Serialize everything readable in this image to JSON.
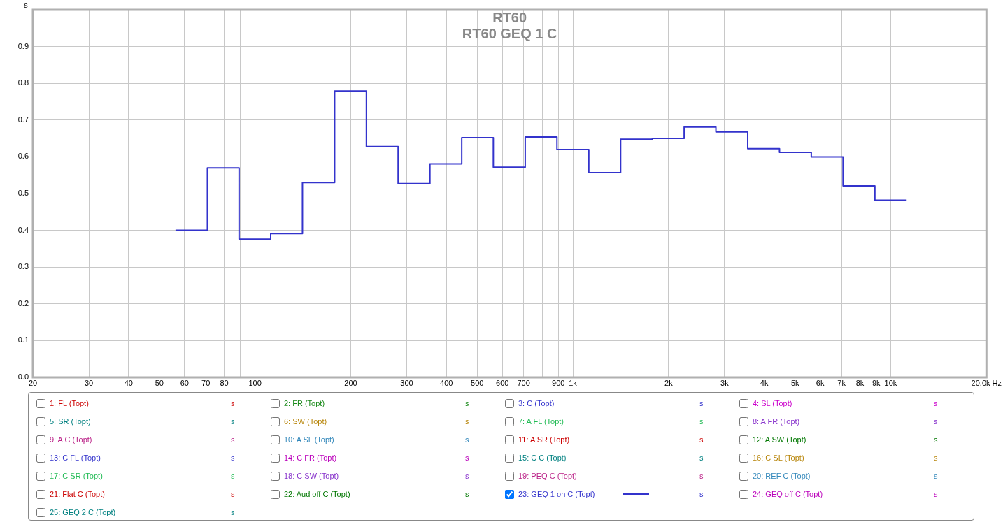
{
  "chart_data": {
    "type": "step",
    "title": "RT60",
    "subtitle": "RT60 GEQ 1 C",
    "ylabel": "s",
    "log": "x",
    "grid": true,
    "legend": "bottom",
    "x": [
      56.2,
      70.8,
      89.1,
      112,
      141,
      178,
      224,
      282,
      355,
      447,
      562,
      708,
      891,
      1122,
      1413,
      1778,
      2239,
      2818,
      3548,
      4467,
      5623,
      7079,
      8913,
      11220
    ],
    "xlim": [
      20,
      20000
    ],
    "xticks": [
      20,
      30,
      40,
      50,
      60,
      70,
      80,
      {
        "value": 90,
        "label": null
      },
      100,
      200,
      300,
      400,
      500,
      600,
      700,
      {
        "value": 800,
        "label": null
      },
      900,
      {
        "value": 1000,
        "label": "1k"
      },
      {
        "value": 2000,
        "label": "2k"
      },
      {
        "value": 3000,
        "label": "3k"
      },
      {
        "value": 4000,
        "label": "4k"
      },
      {
        "value": 5000,
        "label": "5k"
      },
      {
        "value": 6000,
        "label": "6k"
      },
      {
        "value": 7000,
        "label": "7k"
      },
      {
        "value": 8000,
        "label": "8k"
      },
      {
        "value": 9000,
        "label": "9k"
      },
      {
        "value": 10000,
        "label": "10k"
      },
      {
        "value": 20000,
        "label": "20.0k Hz"
      }
    ],
    "ylim": [
      0,
      1
    ],
    "yticks": [
      {
        "value": 0,
        "label": "0.0"
      },
      0.1,
      0.2,
      0.3,
      0.4,
      0.5,
      0.6,
      0.7,
      0.8,
      0.9
    ],
    "series": [
      {
        "name": "1: FL (Topt)",
        "color": "#cc0000",
        "values": [
          null,
          null,
          null,
          null,
          null,
          null,
          null,
          null,
          null,
          null,
          null,
          null,
          null,
          null,
          null,
          null,
          null,
          null,
          null,
          null,
          null,
          null,
          null,
          null
        ]
      },
      {
        "name": "2: FR (Topt)",
        "color": "#1a8a1a",
        "values": [
          null,
          null,
          null,
          null,
          null,
          null,
          null,
          null,
          null,
          null,
          null,
          null,
          null,
          null,
          null,
          null,
          null,
          null,
          null,
          null,
          null,
          null,
          null,
          null
        ]
      },
      {
        "name": "3: C (Topt)",
        "color": "#3333cc",
        "values": [
          null,
          null,
          null,
          null,
          null,
          null,
          null,
          null,
          null,
          null,
          null,
          null,
          null,
          null,
          null,
          null,
          null,
          null,
          null,
          null,
          null,
          null,
          null,
          null
        ]
      },
      {
        "name": "4: SL (Topt)",
        "color": "#cc00cc",
        "values": [
          null,
          null,
          null,
          null,
          null,
          null,
          null,
          null,
          null,
          null,
          null,
          null,
          null,
          null,
          null,
          null,
          null,
          null,
          null,
          null,
          null,
          null,
          null,
          null
        ]
      },
      {
        "name": "5: SR (Topt)",
        "color": "#008080",
        "values": [
          null,
          null,
          null,
          null,
          null,
          null,
          null,
          null,
          null,
          null,
          null,
          null,
          null,
          null,
          null,
          null,
          null,
          null,
          null,
          null,
          null,
          null,
          null,
          null
        ]
      },
      {
        "name": "6: SW (Topt)",
        "color": "#b8860b",
        "values": [
          null,
          null,
          null,
          null,
          null,
          null,
          null,
          null,
          null,
          null,
          null,
          null,
          null,
          null,
          null,
          null,
          null,
          null,
          null,
          null,
          null,
          null,
          null,
          null
        ]
      },
      {
        "name": "7: A FL (Topt)",
        "color": "#22bb55",
        "values": [
          null,
          null,
          null,
          null,
          null,
          null,
          null,
          null,
          null,
          null,
          null,
          null,
          null,
          null,
          null,
          null,
          null,
          null,
          null,
          null,
          null,
          null,
          null,
          null
        ]
      },
      {
        "name": "8: A FR (Topt)",
        "color": "#8833cc",
        "values": [
          null,
          null,
          null,
          null,
          null,
          null,
          null,
          null,
          null,
          null,
          null,
          null,
          null,
          null,
          null,
          null,
          null,
          null,
          null,
          null,
          null,
          null,
          null,
          null
        ]
      },
      {
        "name": "9: A C (Topt)",
        "color": "#bb2288",
        "values": [
          null,
          null,
          null,
          null,
          null,
          null,
          null,
          null,
          null,
          null,
          null,
          null,
          null,
          null,
          null,
          null,
          null,
          null,
          null,
          null,
          null,
          null,
          null,
          null
        ]
      },
      {
        "name": "10: A SL (Topt)",
        "color": "#3388bb",
        "values": [
          null,
          null,
          null,
          null,
          null,
          null,
          null,
          null,
          null,
          null,
          null,
          null,
          null,
          null,
          null,
          null,
          null,
          null,
          null,
          null,
          null,
          null,
          null,
          null
        ]
      },
      {
        "name": "11: A SR (Topt)",
        "color": "#cc0000",
        "values": [
          null,
          null,
          null,
          null,
          null,
          null,
          null,
          null,
          null,
          null,
          null,
          null,
          null,
          null,
          null,
          null,
          null,
          null,
          null,
          null,
          null,
          null,
          null,
          null
        ]
      },
      {
        "name": "12: A SW (Topt)",
        "color": "#007700",
        "values": [
          null,
          null,
          null,
          null,
          null,
          null,
          null,
          null,
          null,
          null,
          null,
          null,
          null,
          null,
          null,
          null,
          null,
          null,
          null,
          null,
          null,
          null,
          null,
          null
        ]
      },
      {
        "name": "13: C FL (Topt)",
        "color": "#3333cc",
        "values": [
          null,
          null,
          null,
          null,
          null,
          null,
          null,
          null,
          null,
          null,
          null,
          null,
          null,
          null,
          null,
          null,
          null,
          null,
          null,
          null,
          null,
          null,
          null,
          null
        ]
      },
      {
        "name": "14: C FR (Topt)",
        "color": "#bb00bb",
        "values": [
          null,
          null,
          null,
          null,
          null,
          null,
          null,
          null,
          null,
          null,
          null,
          null,
          null,
          null,
          null,
          null,
          null,
          null,
          null,
          null,
          null,
          null,
          null,
          null
        ]
      },
      {
        "name": "15: C C (Topt)",
        "color": "#008080",
        "values": [
          null,
          null,
          null,
          null,
          null,
          null,
          null,
          null,
          null,
          null,
          null,
          null,
          null,
          null,
          null,
          null,
          null,
          null,
          null,
          null,
          null,
          null,
          null,
          null
        ]
      },
      {
        "name": "16: C SL (Topt)",
        "color": "#b8860b",
        "values": [
          null,
          null,
          null,
          null,
          null,
          null,
          null,
          null,
          null,
          null,
          null,
          null,
          null,
          null,
          null,
          null,
          null,
          null,
          null,
          null,
          null,
          null,
          null,
          null
        ]
      },
      {
        "name": "17: C SR (Topt)",
        "color": "#22bb55",
        "values": [
          null,
          null,
          null,
          null,
          null,
          null,
          null,
          null,
          null,
          null,
          null,
          null,
          null,
          null,
          null,
          null,
          null,
          null,
          null,
          null,
          null,
          null,
          null,
          null
        ]
      },
      {
        "name": "18: C SW (Topt)",
        "color": "#8833cc",
        "values": [
          null,
          null,
          null,
          null,
          null,
          null,
          null,
          null,
          null,
          null,
          null,
          null,
          null,
          null,
          null,
          null,
          null,
          null,
          null,
          null,
          null,
          null,
          null,
          null
        ]
      },
      {
        "name": "19: PEQ C (Topt)",
        "color": "#bb2288",
        "values": [
          null,
          null,
          null,
          null,
          null,
          null,
          null,
          null,
          null,
          null,
          null,
          null,
          null,
          null,
          null,
          null,
          null,
          null,
          null,
          null,
          null,
          null,
          null,
          null
        ]
      },
      {
        "name": "20: REF C (Topt)",
        "color": "#3388bb",
        "values": [
          null,
          null,
          null,
          null,
          null,
          null,
          null,
          null,
          null,
          null,
          null,
          null,
          null,
          null,
          null,
          null,
          null,
          null,
          null,
          null,
          null,
          null,
          null,
          null
        ]
      },
      {
        "name": "21: Flat C (Topt)",
        "color": "#cc0000",
        "values": [
          null,
          null,
          null,
          null,
          null,
          null,
          null,
          null,
          null,
          null,
          null,
          null,
          null,
          null,
          null,
          null,
          null,
          null,
          null,
          null,
          null,
          null,
          null,
          null
        ]
      },
      {
        "name": "22: Aud off C (Topt)",
        "color": "#007700",
        "values": [
          null,
          null,
          null,
          null,
          null,
          null,
          null,
          null,
          null,
          null,
          null,
          null,
          null,
          null,
          null,
          null,
          null,
          null,
          null,
          null,
          null,
          null,
          null,
          null
        ]
      },
      {
        "name": "23: GEQ 1 on C (Topt)",
        "color": "#3333cc",
        "values": [
          0.4,
          0.57,
          0.376,
          0.391,
          0.53,
          0.779,
          0.628,
          0.527,
          0.581,
          0.652,
          0.572,
          0.654,
          0.62,
          0.557,
          0.648,
          0.65,
          0.681,
          0.668,
          0.622,
          0.612,
          0.6,
          0.521,
          0.482,
          0.482
        ]
      },
      {
        "name": "24: GEQ off C (Topt)",
        "color": "#bb00bb",
        "values": [
          null,
          null,
          null,
          null,
          null,
          null,
          null,
          null,
          null,
          null,
          null,
          null,
          null,
          null,
          null,
          null,
          null,
          null,
          null,
          null,
          null,
          null,
          null,
          null
        ]
      },
      {
        "name": "25: GEQ 2 C (Topt)",
        "color": "#008080",
        "values": [
          null,
          null,
          null,
          null,
          null,
          null,
          null,
          null,
          null,
          null,
          null,
          null,
          null,
          null,
          null,
          null,
          null,
          null,
          null,
          null,
          null,
          null,
          null,
          null
        ]
      }
    ]
  }
}
